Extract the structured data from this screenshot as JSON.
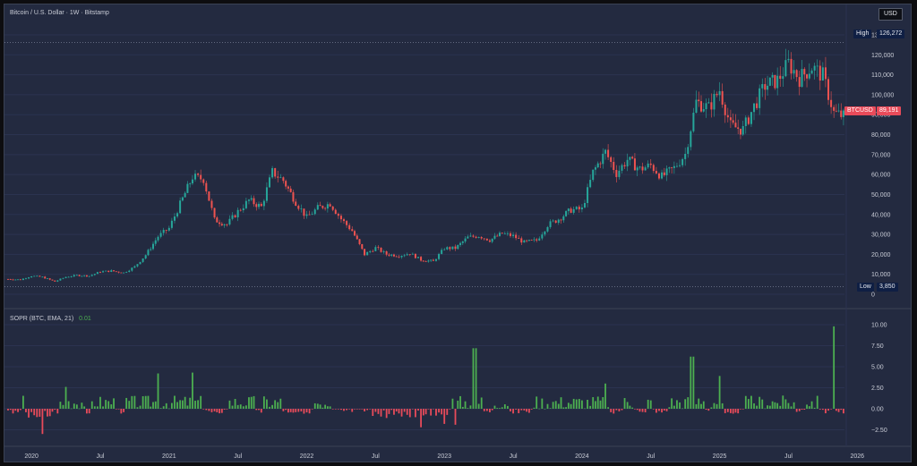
{
  "header": {
    "title": "Bitcoin / U.S. Dollar · 1W · Bitstamp",
    "currency": "USD"
  },
  "indicator": {
    "label": "SOPR (BTC, EMA, 21)",
    "value": "0.01"
  },
  "price_axis": {
    "ticks": [
      "130,000",
      "120,000",
      "110,000",
      "100,000",
      "90,000",
      "80,000",
      "70,000",
      "60,000",
      "50,000",
      "40,000",
      "30,000",
      "20,000",
      "10,000",
      "0"
    ],
    "high": {
      "label": "High",
      "value": "126,272"
    },
    "low": {
      "label": "Low",
      "value": "3,850"
    },
    "last": {
      "symbol": "BTCUSD",
      "value": "89,191"
    }
  },
  "sopr_axis": {
    "ticks": [
      "10.00",
      "7.50",
      "5.00",
      "2.50",
      "0.00",
      "−2.50"
    ]
  },
  "time_axis": {
    "labels": [
      "2020",
      "Jul",
      "2021",
      "Jul",
      "2022",
      "Jul",
      "2023",
      "Jul",
      "2024",
      "Jul",
      "2025",
      "Jul",
      "2026"
    ]
  },
  "colors": {
    "up": "#26a69a",
    "down": "#ef5350",
    "sopr_up": "#4caf50",
    "sopr_down": "#e84b5a",
    "bg": "#232a40"
  },
  "chart_data": [
    {
      "type": "candlestick",
      "x_range": [
        "2019-11",
        "2026-01"
      ],
      "ylim": [
        0,
        130000
      ],
      "high": 126272,
      "low": 3850,
      "last": 89191,
      "monthly_close": [
        [
          2019.83,
          7600
        ],
        [
          2019.92,
          7300
        ],
        [
          2020.0,
          9200
        ],
        [
          2020.08,
          8600
        ],
        [
          2020.17,
          6400
        ],
        [
          2020.25,
          8700
        ],
        [
          2020.33,
          9500
        ],
        [
          2020.42,
          9200
        ],
        [
          2020.5,
          11300
        ],
        [
          2020.58,
          11700
        ],
        [
          2020.67,
          10800
        ],
        [
          2020.75,
          13800
        ],
        [
          2020.83,
          19700
        ],
        [
          2020.92,
          29000
        ],
        [
          2021.0,
          33100
        ],
        [
          2021.08,
          45200
        ],
        [
          2021.17,
          58800
        ],
        [
          2021.25,
          57700
        ],
        [
          2021.33,
          37300
        ],
        [
          2021.42,
          35000
        ],
        [
          2021.5,
          41500
        ],
        [
          2021.58,
          47100
        ],
        [
          2021.67,
          43800
        ],
        [
          2021.75,
          61300
        ],
        [
          2021.83,
          57000
        ],
        [
          2021.92,
          46200
        ],
        [
          2022.0,
          38500
        ],
        [
          2022.08,
          43200
        ],
        [
          2022.17,
          45500
        ],
        [
          2022.25,
          37700
        ],
        [
          2022.33,
          31800
        ],
        [
          2022.42,
          19900
        ],
        [
          2022.5,
          23300
        ],
        [
          2022.58,
          20000
        ],
        [
          2022.67,
          19400
        ],
        [
          2022.75,
          20500
        ],
        [
          2022.83,
          17200
        ],
        [
          2022.92,
          16500
        ],
        [
          2023.0,
          23100
        ],
        [
          2023.08,
          23100
        ],
        [
          2023.17,
          28500
        ],
        [
          2023.25,
          29300
        ],
        [
          2023.33,
          27200
        ],
        [
          2023.42,
          30500
        ],
        [
          2023.5,
          29200
        ],
        [
          2023.58,
          26000
        ],
        [
          2023.67,
          27000
        ],
        [
          2023.75,
          34700
        ],
        [
          2023.83,
          37700
        ],
        [
          2023.92,
          42300
        ],
        [
          2024.0,
          42600
        ],
        [
          2024.08,
          61200
        ],
        [
          2024.17,
          71300
        ],
        [
          2024.25,
          60700
        ],
        [
          2024.33,
          67500
        ],
        [
          2024.42,
          62700
        ],
        [
          2024.5,
          64600
        ],
        [
          2024.58,
          58900
        ],
        [
          2024.67,
          63300
        ],
        [
          2024.75,
          70300
        ],
        [
          2024.83,
          96400
        ],
        [
          2024.92,
          93400
        ],
        [
          2025.0,
          102400
        ],
        [
          2025.08,
          84300
        ],
        [
          2025.17,
          82500
        ],
        [
          2025.25,
          94200
        ],
        [
          2025.33,
          104600
        ],
        [
          2025.42,
          107200
        ],
        [
          2025.5,
          115700
        ],
        [
          2025.58,
          108200
        ],
        [
          2025.67,
          114000
        ],
        [
          2025.75,
          109500
        ],
        [
          2025.83,
          91000
        ],
        [
          2025.9,
          89191
        ]
      ]
    },
    {
      "type": "bar",
      "name": "SOPR (BTC, EMA, 21)",
      "ylim": [
        -3.5,
        10.5
      ],
      "x_range": [
        "2019-11",
        "2026-01"
      ],
      "notable_values": [
        [
          2020.08,
          -3.0
        ],
        [
          2020.25,
          2.6
        ],
        [
          2020.92,
          4.2
        ],
        [
          2021.17,
          4.3
        ],
        [
          2022.83,
          -2.2
        ],
        [
          2023.0,
          -1.8
        ],
        [
          2023.08,
          -1.9
        ],
        [
          2023.22,
          7.2
        ],
        [
          2024.17,
          3.0
        ],
        [
          2024.8,
          6.2
        ],
        [
          2025.0,
          3.9
        ],
        [
          2025.83,
          9.8
        ]
      ]
    }
  ]
}
